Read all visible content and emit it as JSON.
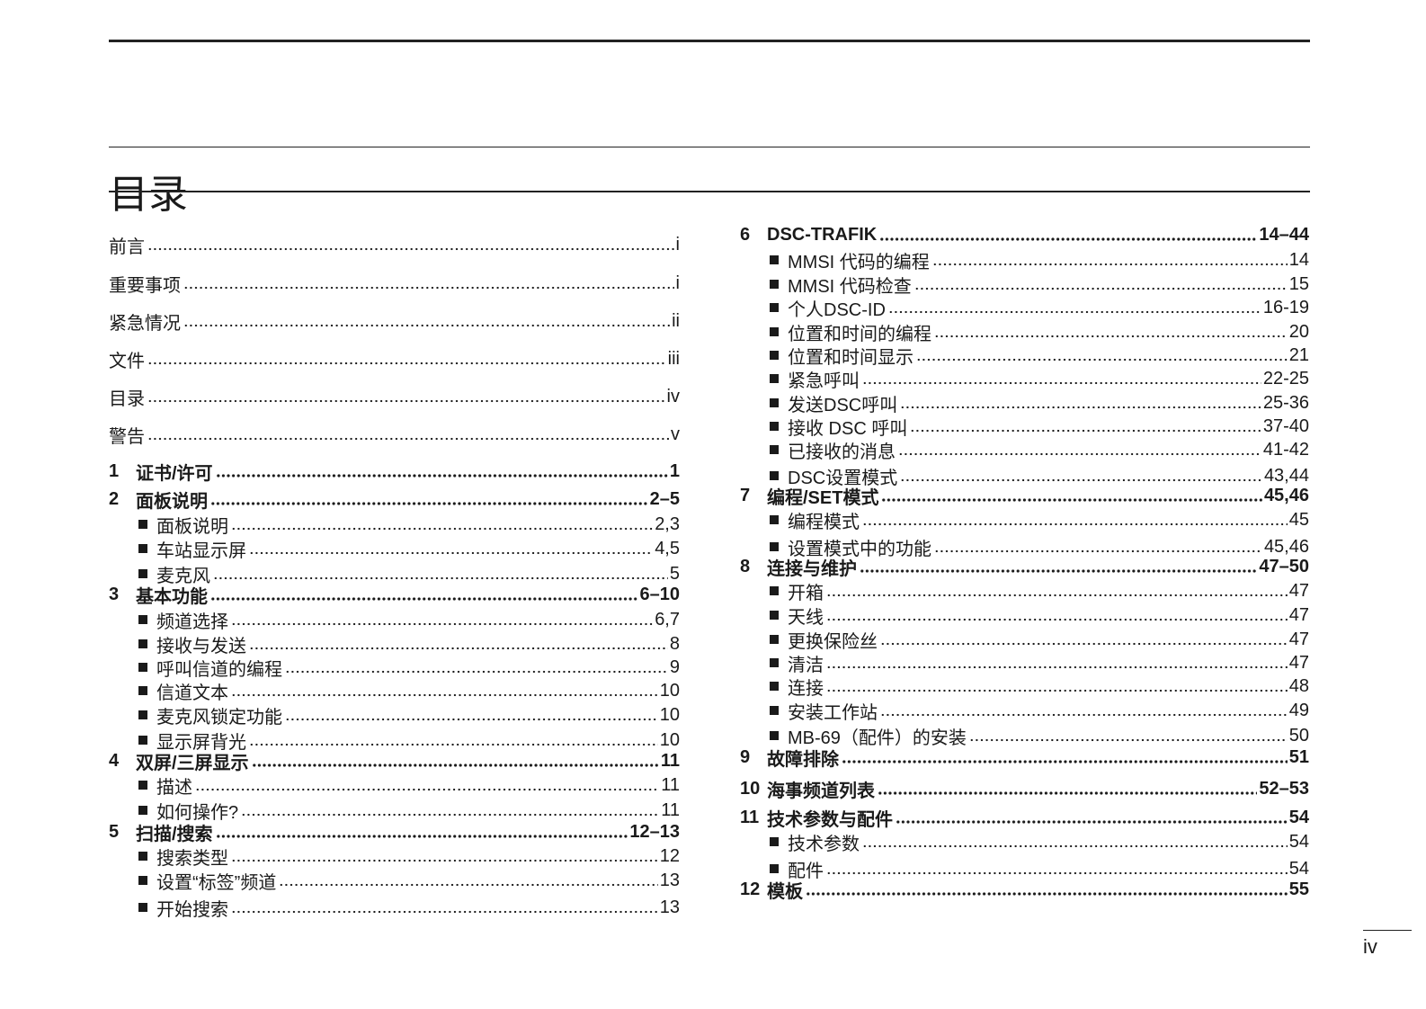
{
  "title": "目录",
  "page_number": "iv",
  "left": [
    {
      "type": "plain",
      "label": "前言",
      "page": "i"
    },
    {
      "type": "plain",
      "label": "重要事项",
      "page": "i"
    },
    {
      "type": "plain",
      "label": "紧急情况",
      "page": "ii"
    },
    {
      "type": "plain",
      "label": "文件",
      "page": "iii"
    },
    {
      "type": "plain",
      "label": "目录",
      "page": "iv"
    },
    {
      "type": "plain",
      "label": "警告",
      "page": "v"
    },
    {
      "type": "sec",
      "num": "1",
      "label": "证书/许可",
      "page": "1"
    },
    {
      "type": "sec",
      "num": "2",
      "label": "面板说明",
      "page": "2–5"
    },
    {
      "type": "sub",
      "label": "面板说明",
      "page": "2,3"
    },
    {
      "type": "sub",
      "label": "车站显示屏",
      "page": "4,5"
    },
    {
      "type": "sub",
      "label": "麦克风",
      "page": "5"
    },
    {
      "type": "sec",
      "num": "3",
      "label": "基本功能",
      "page": "6–10"
    },
    {
      "type": "sub",
      "label": "频道选择",
      "page": "6,7"
    },
    {
      "type": "sub",
      "label": "接收与发送",
      "page": "8"
    },
    {
      "type": "sub",
      "label": "呼叫信道的编程",
      "page": "9"
    },
    {
      "type": "sub",
      "label": "信道文本",
      "page": "10"
    },
    {
      "type": "sub",
      "label": "麦克风锁定功能",
      "page": "10"
    },
    {
      "type": "sub",
      "label": "显示屏背光",
      "page": "10"
    },
    {
      "type": "sec",
      "num": "4",
      "label": "双屏/三屏显示",
      "page": "11"
    },
    {
      "type": "sub",
      "label": "描述",
      "page": "11"
    },
    {
      "type": "sub",
      "label": "如何操作?",
      "page": "11"
    },
    {
      "type": "sec",
      "num": "5",
      "label": "扫描/搜索",
      "page": "12–13"
    },
    {
      "type": "sub",
      "label": "搜索类型",
      "page": "12"
    },
    {
      "type": "sub",
      "label": "设置“标签”频道",
      "page": "13"
    },
    {
      "type": "sub",
      "label": "开始搜索",
      "page": "13"
    }
  ],
  "right": [
    {
      "type": "sec",
      "num": "6",
      "label": "DSC-TRAFIK",
      "page": "14–44"
    },
    {
      "type": "sub",
      "label": "MMSI 代码的编程",
      "page": "14"
    },
    {
      "type": "sub",
      "label": "MMSI 代码检查",
      "page": "15"
    },
    {
      "type": "sub",
      "label": "个人DSC-ID",
      "page": "16-19"
    },
    {
      "type": "sub",
      "label": "位置和时间的编程",
      "page": "20"
    },
    {
      "type": "sub",
      "label": "位置和时间显示",
      "page": "21"
    },
    {
      "type": "sub",
      "label": "紧急呼叫",
      "page": "22-25"
    },
    {
      "type": "sub",
      "label": "发送DSC呼叫",
      "page": "25-36"
    },
    {
      "type": "sub",
      "label": "接收 DSC 呼叫",
      "page": "37-40"
    },
    {
      "type": "sub",
      "label": "已接收的消息",
      "page": "41-42"
    },
    {
      "type": "sub",
      "label": "DSC设置模式",
      "page": "43,44"
    },
    {
      "type": "sec",
      "num": "7",
      "label": "编程/SET模式",
      "page": "45,46"
    },
    {
      "type": "sub",
      "label": "编程模式",
      "page": "45"
    },
    {
      "type": "sub",
      "label": "设置模式中的功能",
      "page": "45,46"
    },
    {
      "type": "sec",
      "num": "8",
      "label": "连接与维护",
      "page": "47–50"
    },
    {
      "type": "sub",
      "label": "开箱",
      "page": "47"
    },
    {
      "type": "sub",
      "label": "天线",
      "page": "47"
    },
    {
      "type": "sub",
      "label": "更换保险丝",
      "page": "47"
    },
    {
      "type": "sub",
      "label": "清洁",
      "page": "47"
    },
    {
      "type": "sub",
      "label": "连接",
      "page": "48"
    },
    {
      "type": "sub",
      "label": "安装工作站",
      "page": "49"
    },
    {
      "type": "sub",
      "label": "MB-69（配件）的安装",
      "page": "50"
    },
    {
      "type": "sec",
      "num": "9",
      "label": "故障排除",
      "page": "51"
    },
    {
      "type": "sec",
      "num": "10",
      "label": "海事频道列表",
      "page": "52–53"
    },
    {
      "type": "sec",
      "num": "11",
      "label": "技术参数与配件",
      "page": "54"
    },
    {
      "type": "sub",
      "label": "技术参数",
      "page": "54"
    },
    {
      "type": "sub",
      "label": "配件",
      "page": "54"
    },
    {
      "type": "sec",
      "num": "12",
      "label": "模板",
      "page": "55"
    }
  ]
}
